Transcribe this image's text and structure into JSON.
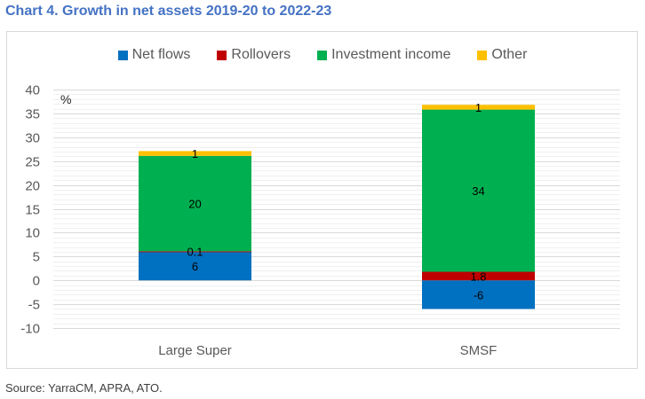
{
  "title": "Chart 4. Growth in net assets 2019-20 to 2022-23",
  "source": "Source: YarraCM, APRA, ATO.",
  "chart_data": {
    "type": "bar",
    "stacked": true,
    "title": "Chart 4. Growth in net assets 2019-20 to 2022-23",
    "xlabel": "",
    "ylabel": "%",
    "ylim": [
      -10,
      40
    ],
    "yticks": [
      40,
      35,
      30,
      25,
      20,
      15,
      10,
      5,
      0,
      -5,
      -10
    ],
    "ytick_labels": [
      "40",
      "35",
      "30",
      "25",
      "20",
      "15",
      "10",
      "5",
      "0",
      "-5",
      "-10"
    ],
    "minor_grid_step": 1,
    "grid": true,
    "legend": "top-center",
    "categories": [
      "Large Super",
      "SMSF"
    ],
    "series": [
      {
        "name": "Net flows",
        "color": "#0070c0",
        "values": [
          6,
          -6
        ],
        "labels": [
          "6",
          "-6"
        ]
      },
      {
        "name": "Rollovers",
        "color": "#c00000",
        "values": [
          0.1,
          1.8
        ],
        "labels": [
          "0.1",
          "1.8"
        ]
      },
      {
        "name": "Investment income",
        "color": "#00b050",
        "values": [
          20,
          34
        ],
        "labels": [
          "20",
          "34"
        ]
      },
      {
        "name": "Other",
        "color": "#ffc000",
        "values": [
          1,
          1
        ],
        "labels": [
          "1",
          "1"
        ]
      }
    ]
  }
}
